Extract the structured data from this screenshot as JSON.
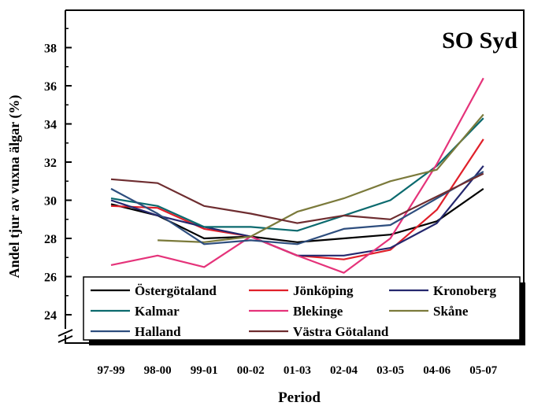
{
  "chart_data": {
    "type": "line",
    "title": "SO Syd",
    "xlabel": "Period",
    "ylabel": "Andel tjur av vuxna älgar (%)",
    "categories": [
      "97-99",
      "98-00",
      "99-01",
      "00-02",
      "01-03",
      "02-04",
      "03-05",
      "04-06",
      "05-07"
    ],
    "yticks": [
      "24",
      "26",
      "28",
      "30",
      "32",
      "34",
      "36",
      "38"
    ],
    "ylim": [
      22.2,
      40
    ],
    "axis_break": true,
    "grid": false,
    "legend_position": "bottom-left",
    "series": [
      {
        "name": "Östergötaland",
        "color": "#000000",
        "values": [
          29.8,
          29.2,
          28.0,
          28.1,
          27.8,
          28.0,
          28.2,
          28.9,
          30.6
        ]
      },
      {
        "name": "Jönköping",
        "color": "#e0202a",
        "values": [
          29.7,
          29.6,
          28.5,
          28.1,
          27.1,
          26.9,
          27.4,
          29.5,
          33.2
        ]
      },
      {
        "name": "Kronoberg",
        "color": "#25286e",
        "values": [
          30.0,
          29.2,
          28.6,
          28.1,
          27.1,
          27.1,
          27.5,
          28.8,
          31.8
        ]
      },
      {
        "name": "Kalmar",
        "color": "#0b6a6e",
        "values": [
          30.1,
          29.7,
          28.6,
          28.6,
          28.4,
          29.2,
          30.0,
          31.8,
          34.3
        ]
      },
      {
        "name": "Blekinge",
        "color": "#e5337a",
        "values": [
          26.6,
          27.1,
          26.5,
          28.1,
          27.1,
          26.2,
          28.0,
          31.9,
          36.4
        ]
      },
      {
        "name": "Skåne",
        "color": "#7b7a3b",
        "values": [
          null,
          27.9,
          27.8,
          28.1,
          29.4,
          30.1,
          31.0,
          31.6,
          34.5
        ]
      },
      {
        "name": "Halland",
        "color": "#2e4e7e",
        "values": [
          30.6,
          29.3,
          27.7,
          27.9,
          27.7,
          28.5,
          28.7,
          30.1,
          31.5
        ]
      },
      {
        "name": "Västra Götaland",
        "color": "#6e2d30",
        "values": [
          31.1,
          30.9,
          29.7,
          29.3,
          28.8,
          29.2,
          29.0,
          30.2,
          31.4
        ]
      }
    ]
  }
}
